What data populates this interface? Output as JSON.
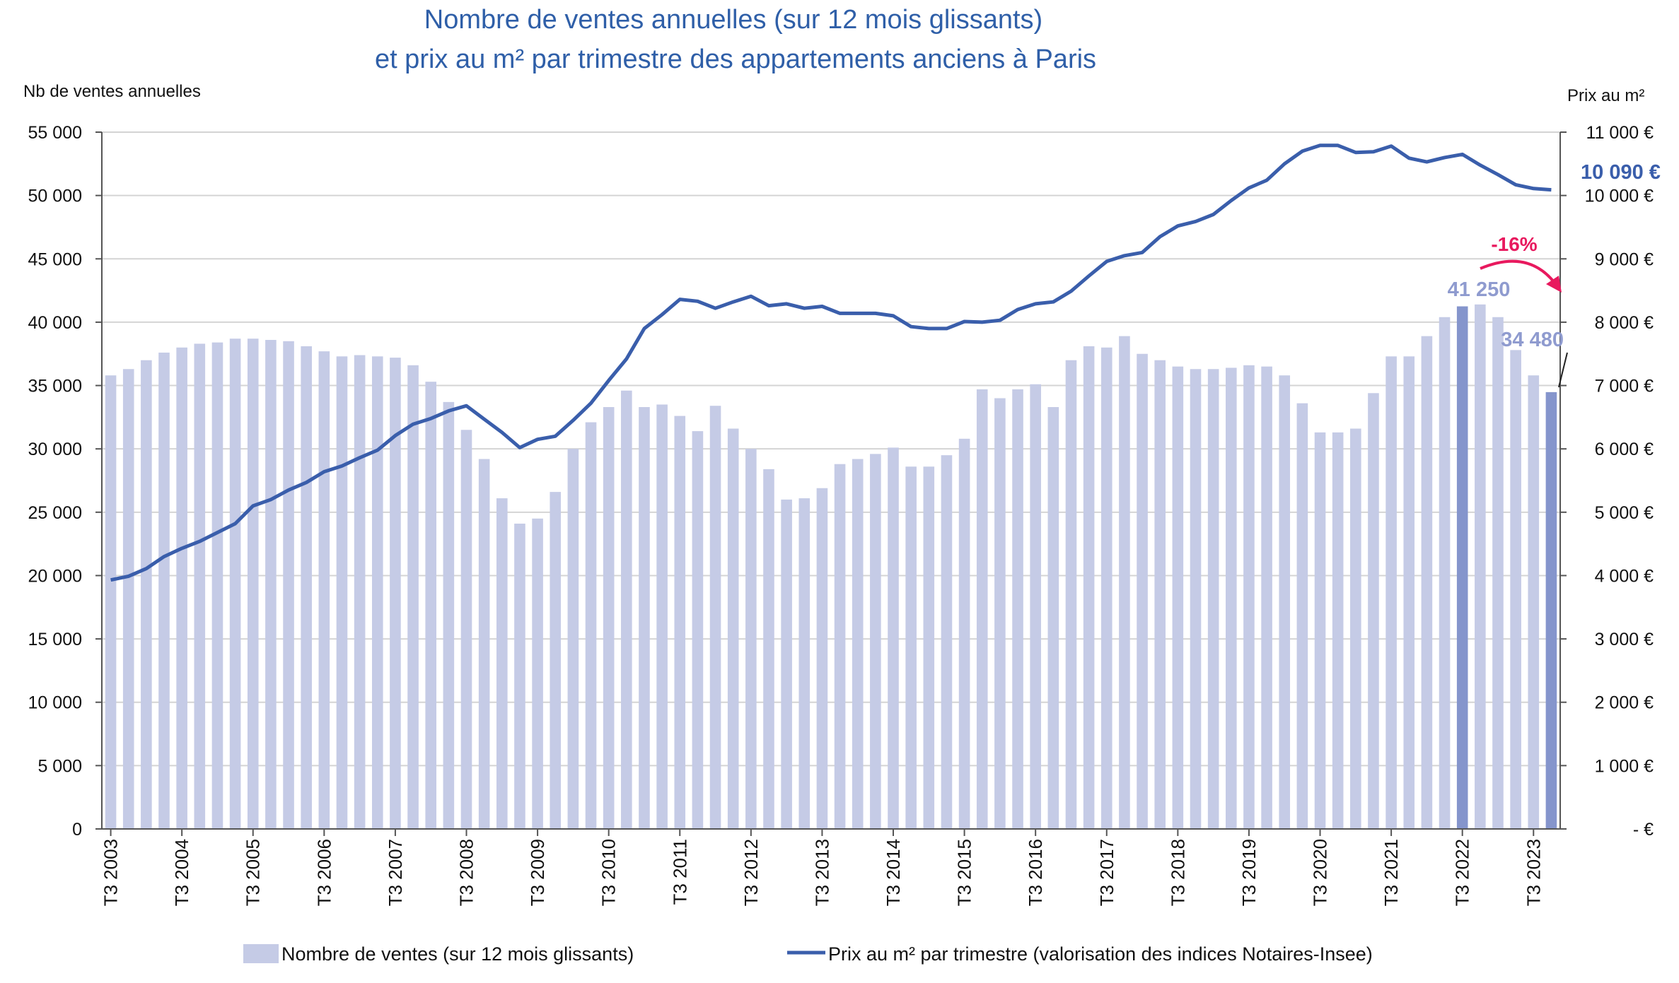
{
  "chart_data": {
    "type": "bar+line",
    "title": [
      "Nombre de ventes annuelles  (sur 12 mois glissants)",
      "et prix au m² par trimestre des appartements anciens à Paris"
    ],
    "ylabel_left": "Nb de ventes annuelles",
    "ylabel_right": "Prix au m²",
    "ylim_left": [
      0,
      55000
    ],
    "ylim_right": [
      0,
      11000
    ],
    "yticks_left": [
      "0",
      "5 000",
      "10 000",
      "15 000",
      "20 000",
      "25 000",
      "30 000",
      "35 000",
      "40 000",
      "45 000",
      "50 000",
      "55 000"
    ],
    "yticks_right": [
      "-  €",
      "1 000 €",
      "2 000 €",
      "3 000 €",
      "4 000 €",
      "5 000 €",
      "6 000 €",
      "7 000 €",
      "8 000 €",
      "9 000 €",
      "10 000 €",
      "11 000 €"
    ],
    "x_labels": [
      "T3 2003",
      "T3 2004",
      "T3 2005",
      "T3 2006",
      "T3 2007",
      "T3 2008",
      "T3 2009",
      "T3 2010",
      "T3 2011",
      "T3 2012",
      "T3 2013",
      "T3 2014",
      "T3 2015",
      "T3 2016",
      "T3 2017",
      "T3 2018",
      "T3 2019",
      "T3 2020",
      "T3 2021",
      "T3 2022",
      "T3 2023"
    ],
    "grid": true,
    "series": [
      {
        "name": "Nombre de ventes (sur 12 mois glissants)",
        "type": "bar",
        "axis": "left",
        "color": "#c5cbe6",
        "highlight_color": "#8595cc",
        "highlight_indices": [
          76,
          81
        ],
        "values": [
          35800,
          36300,
          37000,
          37600,
          38000,
          38300,
          38400,
          38700,
          38700,
          38600,
          38500,
          38100,
          37700,
          37300,
          37400,
          37300,
          37200,
          36600,
          35300,
          33700,
          31500,
          29200,
          26100,
          24100,
          24500,
          26600,
          30000,
          32100,
          33300,
          34600,
          33300,
          33500,
          32600,
          31400,
          33400,
          31600,
          30000,
          28400,
          26000,
          26100,
          26900,
          28800,
          29200,
          29600,
          30100,
          28600,
          28600,
          29500,
          30800,
          34700,
          34000,
          34700,
          35100,
          33300,
          37000,
          38100,
          38000,
          38900,
          37500,
          37000,
          36500,
          36300,
          36300,
          36400,
          36600,
          36500,
          35800,
          33600,
          31300,
          31300,
          31600,
          34400,
          37300,
          37300,
          38900,
          40400,
          41250,
          41400,
          40400,
          37800,
          35800,
          34480
        ]
      },
      {
        "name": "Prix au m² par trimestre (valorisation des indices Notaires-Insee)",
        "type": "line",
        "axis": "right",
        "color": "#3a5eab",
        "values": [
          3930,
          3990,
          4110,
          4300,
          4430,
          4540,
          4680,
          4820,
          5100,
          5200,
          5350,
          5470,
          5640,
          5730,
          5860,
          5980,
          6210,
          6390,
          6480,
          6600,
          6680,
          6470,
          6260,
          6020,
          6150,
          6200,
          6450,
          6720,
          7080,
          7420,
          7900,
          8120,
          8360,
          8330,
          8220,
          8320,
          8410,
          8260,
          8290,
          8220,
          8250,
          8140,
          8140,
          8140,
          8100,
          7930,
          7900,
          7900,
          8010,
          8000,
          8030,
          8200,
          8290,
          8320,
          8490,
          8730,
          8960,
          9050,
          9100,
          9350,
          9520,
          9590,
          9700,
          9920,
          10120,
          10240,
          10500,
          10700,
          10790,
          10790,
          10680,
          10690,
          10780,
          10590,
          10530,
          10600,
          10650,
          10480,
          10330,
          10170,
          10110,
          10090
        ]
      }
    ],
    "annotations": {
      "bar_label_2022": "41 250",
      "bar_label_2023": "34 480",
      "price_label": "10 090 €",
      "change_label": "-16%"
    },
    "colors": {
      "title": "#2f5fa8",
      "change": "#e8195e",
      "highlight_label": "#8f9bcf"
    }
  },
  "legend": {
    "bars": "Nombre de ventes (sur 12 mois glissants)",
    "line": "Prix au m² par trimestre (valorisation des indices Notaires-Insee)"
  }
}
